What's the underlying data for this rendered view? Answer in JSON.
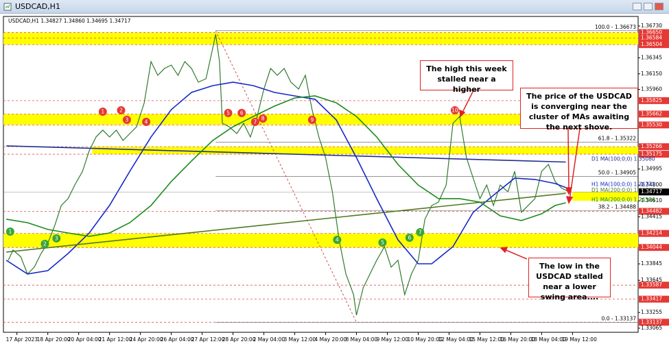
{
  "chart_data": {
    "type": "line",
    "title": "USDCAD,H1",
    "info": "USDCAD,H1 1.34827 1.34860 1.34695 1.34717",
    "xlim": [
      -14,
      644
    ],
    "ylim": [
      1.33015,
      1.36846
    ],
    "xticks": [
      {
        "value": 0,
        "label": "17 Apr 2023"
      },
      {
        "value": 32,
        "label": "18 Apr 20:00"
      },
      {
        "value": 64,
        "label": "20 Apr 04:00"
      },
      {
        "value": 96,
        "label": "21 Apr 12:00"
      },
      {
        "value": 128,
        "label": "24 Apr 20:00"
      },
      {
        "value": 160,
        "label": "26 Apr 04:00"
      },
      {
        "value": 192,
        "label": "27 Apr 12:00"
      },
      {
        "value": 224,
        "label": "28 Apr 20:00"
      },
      {
        "value": 256,
        "label": "2 May 04:00"
      },
      {
        "value": 288,
        "label": "3 May 12:00"
      },
      {
        "value": 320,
        "label": "4 May 20:00"
      },
      {
        "value": 352,
        "label": "8 May 04:00"
      },
      {
        "value": 384,
        "label": "9 May 12:00"
      },
      {
        "value": 416,
        "label": "10 May 20:00"
      },
      {
        "value": 448,
        "label": "12 May 04:00"
      },
      {
        "value": 480,
        "label": "15 May 12:00"
      },
      {
        "value": 512,
        "label": "16 May 20:00"
      },
      {
        "value": 544,
        "label": "18 May 04:00"
      },
      {
        "value": 576,
        "label": "19 May 12:00"
      }
    ],
    "yticks": [
      {
        "value": 1.3673,
        "label": "1.36730"
      },
      {
        "value": 1.36345,
        "label": "1.36345"
      },
      {
        "value": 1.3615,
        "label": "1.36150"
      },
      {
        "value": 1.3596,
        "label": "1.35960"
      },
      {
        "value": 1.34995,
        "label": "1.34995"
      },
      {
        "value": 1.348,
        "label": "1.34800"
      },
      {
        "value": 1.3461,
        "label": "1.34610"
      },
      {
        "value": 1.34415,
        "label": "1.34415"
      },
      {
        "value": 1.33845,
        "label": "1.33845"
      },
      {
        "value": 1.33645,
        "label": "1.33645"
      },
      {
        "value": 1.33255,
        "label": "1.33255"
      },
      {
        "value": 1.33065,
        "label": "1.33065"
      }
    ],
    "levels": [
      {
        "value": 1.3665,
        "label": "1.36650"
      },
      {
        "value": 1.36584,
        "label": "1.36584"
      },
      {
        "value": 1.36504,
        "label": "1.36504"
      },
      {
        "value": 1.35825,
        "label": "1.35825"
      },
      {
        "value": 1.35662,
        "label": "1.35662"
      },
      {
        "value": 1.3553,
        "label": "1.35530"
      },
      {
        "value": 1.35266,
        "label": "1.35266"
      },
      {
        "value": 1.35175,
        "label": "1.35175"
      },
      {
        "value": 1.34482,
        "label": "1.34482"
      },
      {
        "value": 1.34214,
        "label": "1.34214"
      },
      {
        "value": 1.34044,
        "label": "1.34044"
      },
      {
        "value": 1.33587,
        "label": "1.33587"
      },
      {
        "value": 1.33417,
        "label": "1.33417"
      },
      {
        "value": 1.33137,
        "label": "1.33137"
      }
    ],
    "current": {
      "value": 1.34717,
      "label": "1.34717"
    },
    "zones": [
      {
        "range": [
          1.36504,
          1.3665
        ]
      },
      {
        "range": [
          1.3553,
          1.35662
        ]
      },
      {
        "range": [
          1.35175,
          1.35266
        ],
        "from": 78
      },
      {
        "range": [
          1.3461,
          1.34717
        ],
        "from": 576
      },
      {
        "range": [
          1.34044,
          1.34214
        ]
      }
    ],
    "fib": [
      {
        "value": 1.36673,
        "label": "100.0 - 1.36673"
      },
      {
        "value": 1.35322,
        "label": "61.8 - 1.35322"
      },
      {
        "value": 1.34905,
        "label": "50.0 - 1.34905"
      },
      {
        "value": 1.34488,
        "label": "38.2 - 1.34488"
      },
      {
        "value": 1.33137,
        "label": "0.0 - 1.33137"
      }
    ],
    "price": {
      "color": "#2f7a2f",
      "x": [
        -9,
        -4,
        4,
        11,
        18,
        25,
        32,
        39,
        46,
        53,
        60,
        68,
        75,
        82,
        89,
        96,
        103,
        110,
        117,
        124,
        132,
        139,
        146,
        153,
        160,
        167,
        174,
        181,
        188,
        196,
        203,
        206,
        210,
        213,
        220,
        228,
        235,
        242,
        249,
        256,
        263,
        270,
        277,
        284,
        292,
        299,
        306,
        313,
        320,
        327,
        334,
        341,
        349,
        352,
        359,
        366,
        373,
        381,
        388,
        395,
        402,
        409,
        416,
        423,
        430,
        437,
        445,
        452,
        459,
        466,
        473,
        480,
        487,
        494,
        501,
        509,
        516,
        523,
        530,
        537,
        544,
        551,
        558,
        565,
        573
      ],
      "values": [
        1.33888,
        1.34013,
        1.3393,
        1.33722,
        1.33805,
        1.33971,
        1.34096,
        1.34303,
        1.34553,
        1.34636,
        1.34802,
        1.34968,
        1.35218,
        1.35384,
        1.35467,
        1.35384,
        1.35467,
        1.35342,
        1.35425,
        1.35508,
        1.35799,
        1.36298,
        1.36132,
        1.36215,
        1.36256,
        1.36132,
        1.36298,
        1.36215,
        1.36049,
        1.3609,
        1.36464,
        1.3663,
        1.36298,
        1.3555,
        1.35508,
        1.35425,
        1.3555,
        1.35384,
        1.35633,
        1.35965,
        1.36215,
        1.36132,
        1.36215,
        1.36049,
        1.35965,
        1.36132,
        1.35716,
        1.35384,
        1.35134,
        1.34719,
        1.34137,
        1.33722,
        1.33472,
        1.33223,
        1.33556,
        1.33722,
        1.33888,
        1.34054,
        1.33805,
        1.33888,
        1.33472,
        1.33722,
        1.33888,
        1.34387,
        1.34553,
        1.34594,
        1.34802,
        1.3555,
        1.35633,
        1.35134,
        1.34885,
        1.34636,
        1.34802,
        1.34553,
        1.34802,
        1.34719,
        1.34968,
        1.3447,
        1.34553,
        1.34636,
        1.34968,
        1.35051,
        1.34844,
        1.34761,
        1.34717
      ]
    },
    "series": [
      {
        "name": "D1 MA(100;0;0) 1.35080",
        "color": "#1f2f8f",
        "x": [
          -11,
          569
        ],
        "values": [
          1.35276,
          1.3508
        ]
      },
      {
        "name": "H1 MA(100;0;0) 1.34771",
        "color": "#1428c8",
        "x": [
          -11,
          11,
          32,
          53,
          75,
          96,
          117,
          139,
          160,
          181,
          203,
          224,
          245,
          267,
          288,
          309,
          331,
          352,
          373,
          395,
          416,
          430,
          452,
          473,
          494,
          516,
          537,
          558,
          569
        ],
        "values": [
          1.33888,
          1.33722,
          1.33763,
          1.33971,
          1.3422,
          1.34553,
          1.34968,
          1.35384,
          1.35716,
          1.35924,
          1.36007,
          1.36049,
          1.36007,
          1.35924,
          1.35882,
          1.35841,
          1.35592,
          1.35134,
          1.34636,
          1.34137,
          1.33846,
          1.33846,
          1.34054,
          1.3447,
          1.34677,
          1.34885,
          1.34869,
          1.34819,
          1.34771
        ]
      },
      {
        "name": "D1 MA(200;0;0) 1.34700",
        "color": "#4f7a1f",
        "x": [
          -11,
          569
        ],
        "values": [
          1.33988,
          1.347
        ]
      },
      {
        "name": "H1 MA(200;0;0) 1.34586",
        "color": "#1a8a1a",
        "x": [
          -11,
          11,
          32,
          53,
          75,
          96,
          117,
          139,
          160,
          181,
          203,
          224,
          245,
          267,
          288,
          309,
          331,
          352,
          373,
          395,
          416,
          437,
          459,
          480,
          501,
          523,
          544,
          558,
          569
        ],
        "values": [
          1.34387,
          1.34345,
          1.34262,
          1.3422,
          1.34179,
          1.3422,
          1.34345,
          1.34553,
          1.34844,
          1.35093,
          1.35342,
          1.35508,
          1.35633,
          1.35758,
          1.35857,
          1.35882,
          1.35799,
          1.35633,
          1.35384,
          1.35051,
          1.34802,
          1.34636,
          1.34636,
          1.34594,
          1.34428,
          1.3437,
          1.34453,
          1.34553,
          1.34586
        ]
      }
    ],
    "markers": [
      {
        "label": "1",
        "color": "#e53935",
        "x": 89,
        "y": 1.35691
      },
      {
        "label": "2",
        "color": "#e53935",
        "x": 108,
        "y": 1.35708
      },
      {
        "label": "3",
        "color": "#e53935",
        "x": 114,
        "y": 1.35592
      },
      {
        "label": "4",
        "color": "#e53935",
        "x": 134,
        "y": 1.35567
      },
      {
        "label": "5",
        "color": "#e53935",
        "x": 219,
        "y": 1.35675
      },
      {
        "label": "6",
        "color": "#e53935",
        "x": 233,
        "y": 1.35675
      },
      {
        "label": "7",
        "color": "#e53935",
        "x": 247,
        "y": 1.35567
      },
      {
        "label": "8",
        "color": "#e53935",
        "x": 255,
        "y": 1.35608
      },
      {
        "label": "9",
        "color": "#e53935",
        "x": 306,
        "y": 1.35592
      },
      {
        "label": "10",
        "color": "#e53935",
        "x": 454,
        "y": 1.35708
      },
      {
        "label": "1",
        "color": "#3aa53a",
        "x": -7,
        "y": 1.34237
      },
      {
        "label": "2",
        "color": "#3aa53a",
        "x": 29,
        "y": 1.34087
      },
      {
        "label": "3",
        "color": "#3aa53a",
        "x": 41,
        "y": 1.34154
      },
      {
        "label": "4",
        "color": "#3aa53a",
        "x": 332,
        "y": 1.34137
      },
      {
        "label": "5",
        "color": "#3aa53a",
        "x": 379,
        "y": 1.34104
      },
      {
        "label": "6",
        "color": "#3aa53a",
        "x": 407,
        "y": 1.34162
      },
      {
        "label": "7",
        "color": "#3aa53a",
        "x": 418,
        "y": 1.34229
      }
    ],
    "callouts": [
      "The high this week stalled near a higher",
      "The price of the USDCAD is converging near the cluster of MAs awaiting the next shove.",
      "The low in the USDCAD stalled near a lower swing area...."
    ]
  }
}
